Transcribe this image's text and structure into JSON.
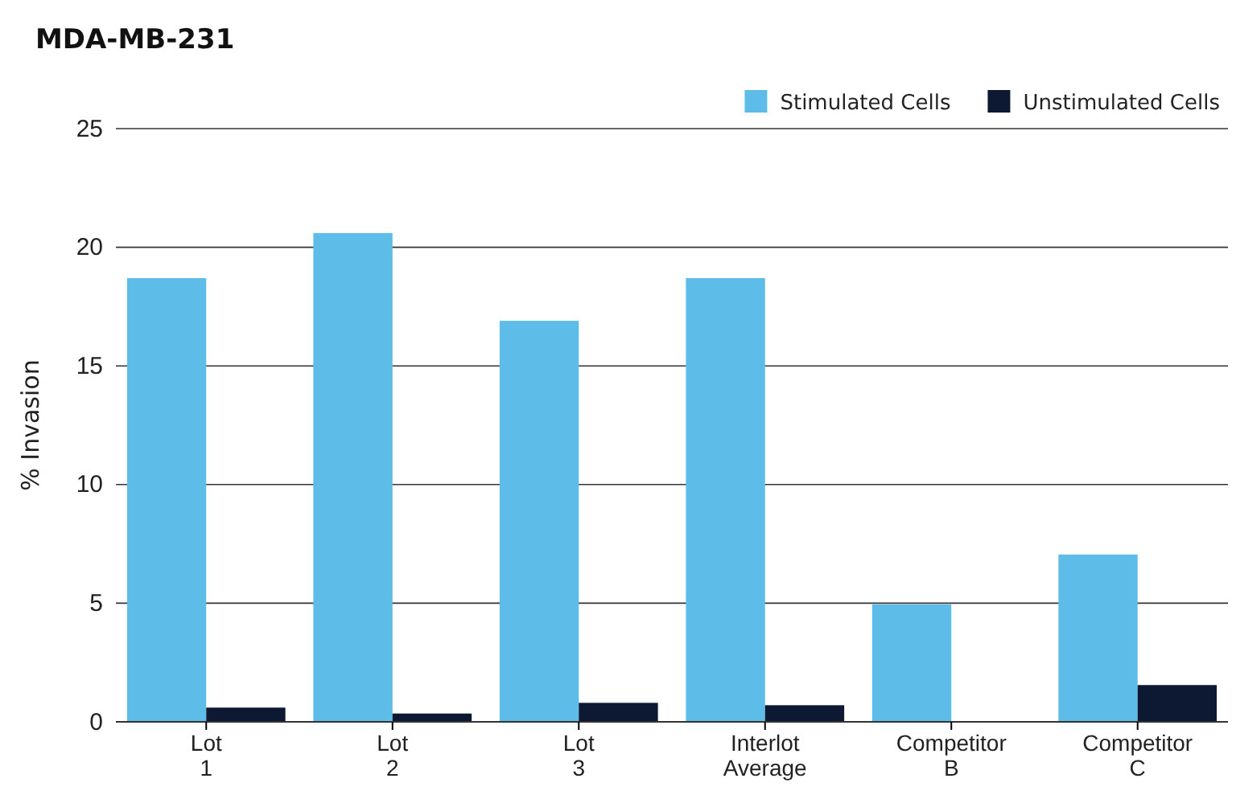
{
  "chart_data": {
    "type": "bar",
    "title": "MDA-MB-231",
    "ylabel": "% Invasion",
    "categories": [
      "Lot 1",
      "Lot 2",
      "Lot 3",
      "Interlot Average",
      "Competitor B",
      "Competitor C"
    ],
    "series": [
      {
        "name": "Stimulated Cells",
        "color": "#5ebde8",
        "values": [
          18.7,
          20.6,
          16.9,
          18.7,
          4.95,
          7.05
        ]
      },
      {
        "name": "Unstimulated Cells",
        "color": "#0d1833",
        "values": [
          0.6,
          0.35,
          0.8,
          0.7,
          null,
          1.55
        ]
      }
    ],
    "ylim": [
      0,
      25
    ],
    "yticks": [
      0,
      5,
      10,
      15,
      20,
      25
    ],
    "grid": "y",
    "legend": "top right"
  }
}
